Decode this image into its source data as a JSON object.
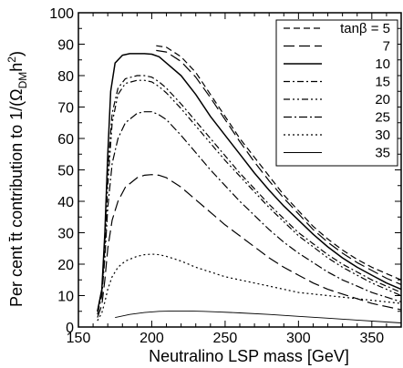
{
  "chart_data": {
    "type": "line",
    "xlabel": "Neutralino LSP mass   [GeV]",
    "ylabel": "Per cent t̄t contribution to 1/(ΩDMh2)",
    "ylabel_parts": {
      "main": "Per cent t̄t contribution to 1/(Ω",
      "sub": "DM",
      "mid": "h",
      "sup": "2",
      "end": ")"
    },
    "xlim": [
      150,
      370
    ],
    "ylim": [
      0,
      100
    ],
    "x_ticks": [
      "150",
      "200",
      "250",
      "300",
      "350"
    ],
    "y_ticks": [
      "0",
      "10",
      "20",
      "30",
      "40",
      "50",
      "60",
      "70",
      "80",
      "90",
      "100"
    ],
    "x_tick_values": [
      150,
      200,
      250,
      300,
      350
    ],
    "y_tick_values": [
      0,
      10,
      20,
      30,
      40,
      50,
      60,
      70,
      80,
      90,
      100
    ],
    "legend_position": "top-right",
    "legend_entries": [
      "tanβ = 5",
      "7",
      "10",
      "15",
      "20",
      "25",
      "30",
      "35"
    ],
    "series": [
      {
        "name": "tanβ = 5",
        "dash": "7,4",
        "width": 1.2,
        "x": [
          203,
          210,
          220,
          230,
          240,
          250,
          260,
          270,
          280,
          290,
          300,
          310,
          320,
          330,
          340,
          350,
          360,
          370
        ],
        "y": [
          89.5,
          89,
          86,
          81,
          74,
          67,
          60,
          54,
          48,
          42,
          37,
          32,
          28,
          24.5,
          21.5,
          19,
          17,
          15
        ]
      },
      {
        "name": "7",
        "dash": "12,5",
        "width": 1.2,
        "x": [
          203,
          210,
          220,
          230,
          240,
          250,
          260,
          270,
          280,
          290,
          300,
          310,
          320,
          330,
          340,
          350,
          360,
          370
        ],
        "y": [
          88,
          87.5,
          84.5,
          79.5,
          73,
          66,
          59,
          52.5,
          46.5,
          41,
          36,
          31,
          27,
          23.5,
          20.5,
          18,
          15.5,
          13.5
        ]
      },
      {
        "name": "10",
        "dash": "",
        "width": 1.5,
        "x": [
          163,
          166,
          168,
          170,
          172,
          175,
          180,
          185,
          190,
          195,
          200,
          205,
          210,
          220,
          230,
          240,
          250,
          260,
          270,
          280,
          290,
          300,
          310,
          320,
          330,
          340,
          350,
          360,
          370
        ],
        "y": [
          5,
          12,
          30,
          55,
          75,
          84,
          86.5,
          87,
          87,
          87,
          86.8,
          86,
          84,
          80,
          74,
          67,
          61,
          55,
          49,
          43.5,
          38.5,
          34,
          29.5,
          25.5,
          22,
          19,
          16.5,
          14,
          12
        ]
      },
      {
        "name": "15",
        "dash": "7,3,2,3",
        "width": 1.2,
        "x": [
          163,
          166,
          168,
          170,
          173,
          177,
          182,
          190,
          195,
          200,
          205,
          210,
          220,
          230,
          240,
          250,
          260,
          270,
          280,
          290,
          300,
          310,
          320,
          330,
          340,
          350,
          360,
          370
        ],
        "y": [
          5,
          12,
          28,
          50,
          68,
          76,
          79,
          80,
          80,
          79.5,
          78,
          76,
          71,
          65.5,
          60,
          54.5,
          49,
          44,
          39,
          34.5,
          30,
          26.5,
          23,
          20,
          17.5,
          15,
          13,
          11
        ]
      },
      {
        "name": "20",
        "dash": "7,3,2,3,2,3",
        "width": 1.2,
        "x": [
          163,
          166,
          168,
          170,
          173,
          177,
          182,
          190,
          195,
          200,
          205,
          210,
          220,
          230,
          240,
          250,
          260,
          270,
          280,
          290,
          300,
          310,
          320,
          330,
          340,
          350,
          360,
          370
        ],
        "y": [
          5,
          11,
          25,
          45,
          65,
          74,
          77.5,
          78.5,
          78.5,
          78,
          76.5,
          74.5,
          69.5,
          64,
          58.5,
          53,
          48,
          43,
          38,
          33.5,
          29,
          25.5,
          22,
          19,
          16.5,
          14,
          12,
          10
        ]
      },
      {
        "name": "25",
        "dash": "9,3,2,3",
        "width": 1.2,
        "x": [
          163,
          166,
          168,
          170,
          173,
          177,
          182,
          190,
          195,
          200,
          205,
          210,
          220,
          230,
          240,
          250,
          260,
          270,
          280,
          290,
          300,
          310,
          320,
          330,
          340,
          350,
          360,
          370
        ],
        "y": [
          4,
          10,
          22,
          38,
          52,
          60,
          65,
          68,
          68.5,
          68.5,
          67.5,
          66,
          61,
          55.5,
          50,
          45,
          40,
          35.5,
          31,
          27,
          23.5,
          20.5,
          17.5,
          15,
          13,
          11,
          9.5,
          8
        ]
      },
      {
        "name": "30",
        "dash": "12,5",
        "width": 1.2,
        "x": [
          163,
          166,
          168,
          170,
          173,
          177,
          182,
          190,
          195,
          200,
          205,
          210,
          220,
          230,
          240,
          250,
          260,
          270,
          280,
          290,
          300,
          310,
          320,
          330,
          340,
          350,
          360,
          370
        ],
        "y": [
          3,
          7,
          15,
          25,
          34,
          40,
          44.5,
          47.5,
          48.3,
          48.5,
          48.3,
          47.5,
          44.5,
          40.5,
          36.5,
          32.5,
          29,
          25.5,
          22,
          19,
          16.5,
          14,
          12,
          10.5,
          9,
          7.5,
          6.5,
          5.5
        ]
      },
      {
        "name": "35",
        "dash": "2,3",
        "width": 1.2,
        "x": [
          163,
          166,
          168,
          170,
          173,
          177,
          182,
          190,
          195,
          200,
          205,
          210,
          220,
          230,
          240,
          250,
          260,
          270,
          280,
          290,
          300,
          310,
          320,
          330,
          340,
          350,
          360,
          370
        ],
        "y": [
          2,
          4.5,
          8,
          12,
          16,
          19,
          21,
          22.5,
          23,
          23.2,
          23,
          22.5,
          21,
          19,
          17.5,
          16,
          15,
          14,
          13,
          12,
          11,
          10.5,
          10,
          9.5,
          9,
          8.5,
          8,
          7.5
        ]
      },
      {
        "name": "35b",
        "dash": "",
        "width": 0.9,
        "x": [
          175,
          185,
          195,
          205,
          215,
          225,
          235,
          245,
          260,
          280,
          300,
          320,
          340,
          360,
          370
        ],
        "y": [
          3,
          4,
          4.6,
          5,
          5.1,
          5.1,
          5,
          4.8,
          4.5,
          4,
          3.4,
          2.8,
          2.2,
          1.6,
          1.3
        ]
      }
    ]
  }
}
